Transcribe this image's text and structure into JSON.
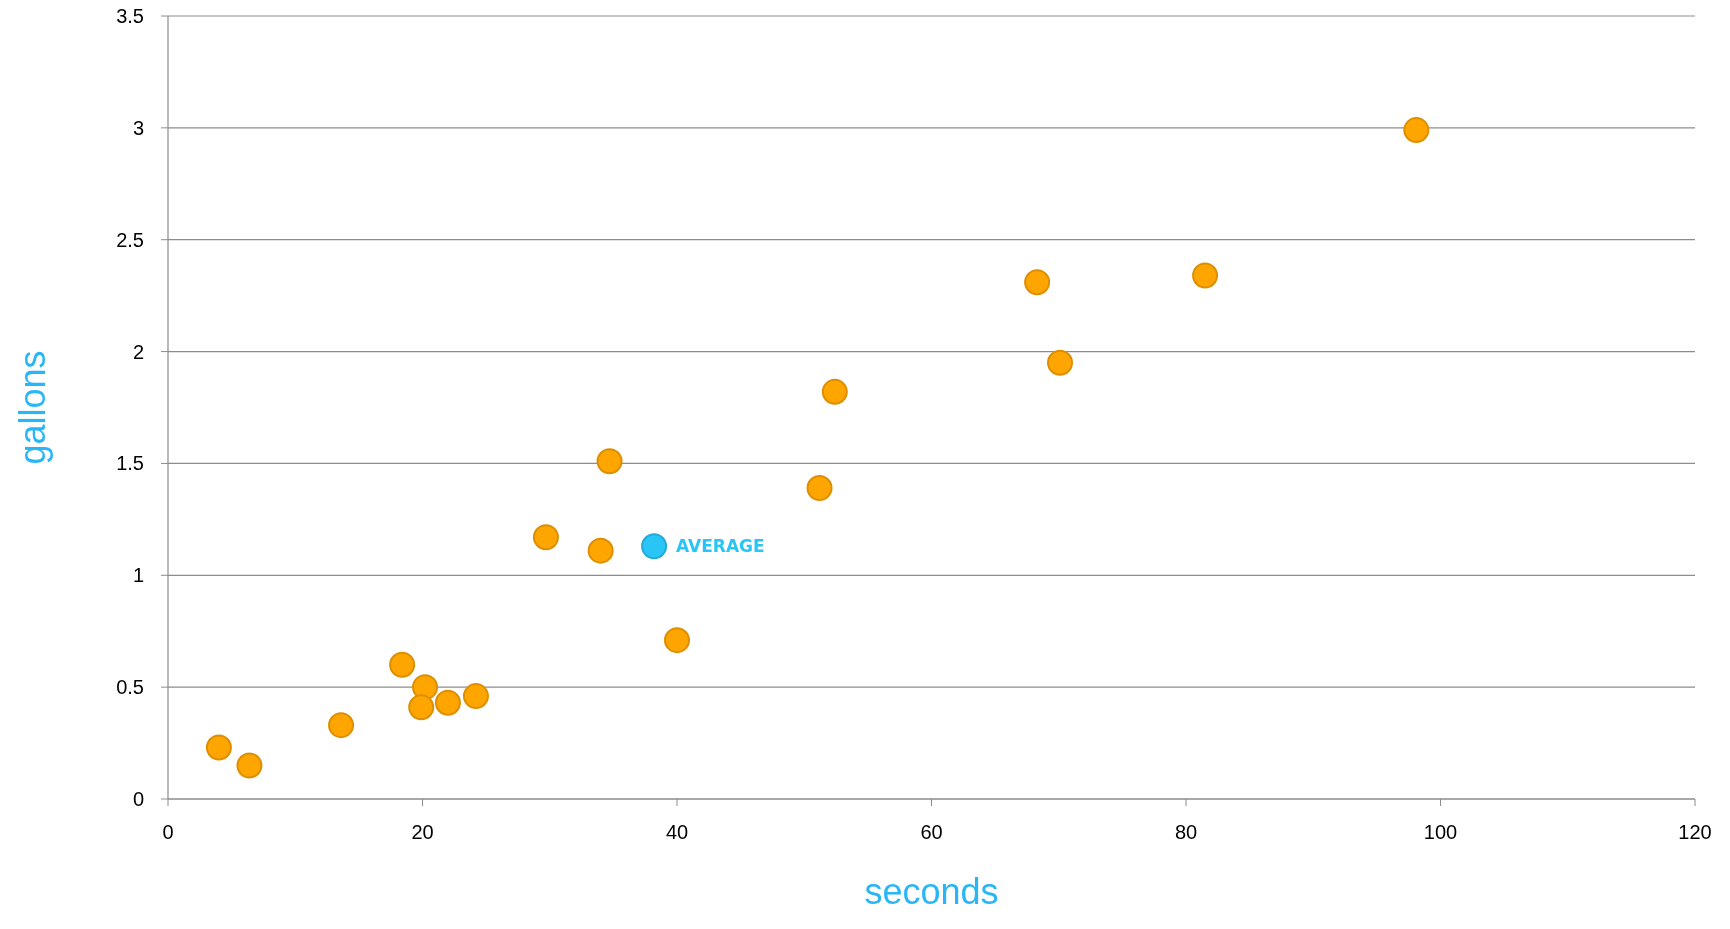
{
  "chart_data": {
    "type": "scatter",
    "xlabel": "seconds",
    "ylabel": "gallons",
    "xlim": [
      0,
      120
    ],
    "xticks": [
      0,
      20,
      40,
      60,
      80,
      100,
      120
    ],
    "ylim": [
      0,
      3.5
    ],
    "yticks": [
      0,
      0.5,
      1,
      1.5,
      2,
      2.5,
      3,
      3.5
    ],
    "grid": "y",
    "marker": "circle",
    "series": [
      {
        "color": "#ffa500",
        "x": [
          4.0,
          6.4,
          13.6,
          18.4,
          20.2,
          19.9,
          22.0,
          24.2,
          29.7,
          34.0,
          34.7,
          40.0,
          51.2,
          52.4,
          68.3,
          70.1,
          81.5,
          98.1
        ],
        "values": [
          0.23,
          0.15,
          0.33,
          0.6,
          0.5,
          0.41,
          0.43,
          0.46,
          1.17,
          1.11,
          1.51,
          0.71,
          1.39,
          1.82,
          2.31,
          1.95,
          2.34,
          2.99
        ]
      },
      {
        "name": "AVERAGE",
        "color": "#29c5f6",
        "x": [
          38.2
        ],
        "values": [
          1.13
        ]
      }
    ]
  }
}
